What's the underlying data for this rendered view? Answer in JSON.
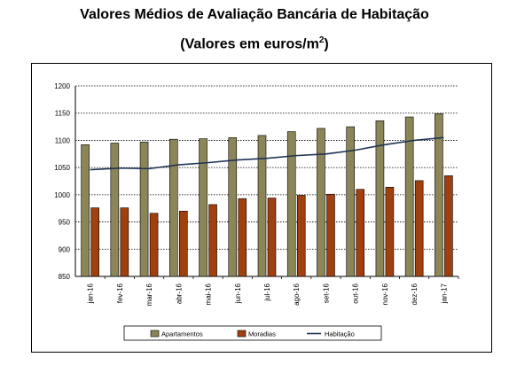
{
  "title": "Valores Médios de Avaliação Bancária de Habitação",
  "subtitle_prefix": "(Valores em euros/m",
  "subtitle_sup": "2",
  "subtitle_suffix": ")",
  "chart_data": {
    "type": "bar",
    "categories": [
      "jan-16",
      "fev-16",
      "mar-16",
      "abr-16",
      "mai-16",
      "jun-16",
      "jul-16",
      "ago-16",
      "set-16",
      "out-16",
      "nov-16",
      "dez-16",
      "jan-17"
    ],
    "series": [
      {
        "name": "Apartamentos",
        "type": "bar",
        "color": "#8b8558",
        "values": [
          1092,
          1095,
          1097,
          1102,
          1103,
          1105,
          1109,
          1116,
          1122,
          1125,
          1136,
          1143,
          1149
        ]
      },
      {
        "name": "Moradias",
        "type": "bar",
        "color": "#a0400f",
        "values": [
          976,
          976,
          966,
          970,
          982,
          993,
          994,
          999,
          1001,
          1010,
          1014,
          1026,
          1035
        ]
      },
      {
        "name": "Habitação",
        "type": "line",
        "color": "#1f3454",
        "values": [
          1046,
          1049,
          1048,
          1055,
          1059,
          1064,
          1067,
          1072,
          1075,
          1082,
          1092,
          1100,
          1105
        ]
      }
    ],
    "ylim": [
      850,
      1200
    ],
    "yticks": [
      "850",
      "900",
      "950",
      "1000",
      "1050",
      "1100",
      "1150",
      "1200"
    ],
    "grid": true,
    "legend_position": "bottom"
  }
}
